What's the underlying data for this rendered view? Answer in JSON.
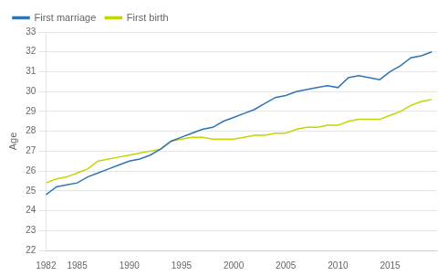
{
  "chart_data": {
    "type": "line",
    "ylabel": "Age",
    "x": [
      1982,
      1983,
      1984,
      1985,
      1986,
      1987,
      1988,
      1989,
      1990,
      1991,
      1992,
      1993,
      1994,
      1995,
      1996,
      1997,
      1998,
      1999,
      2000,
      2001,
      2002,
      2003,
      2004,
      2005,
      2006,
      2007,
      2008,
      2009,
      2010,
      2011,
      2012,
      2013,
      2014,
      2015,
      2016,
      2017,
      2018,
      2019
    ],
    "series": [
      {
        "name": "First marriage",
        "color": "#2E75B6",
        "values": [
          24.8,
          25.2,
          25.3,
          25.4,
          25.7,
          25.9,
          26.1,
          26.3,
          26.5,
          26.6,
          26.8,
          27.1,
          27.5,
          27.7,
          27.9,
          28.1,
          28.2,
          28.5,
          28.7,
          28.9,
          29.1,
          29.4,
          29.7,
          29.8,
          30.0,
          30.1,
          30.2,
          30.3,
          30.2,
          30.7,
          30.8,
          30.7,
          30.6,
          31.0,
          31.3,
          31.7,
          31.8,
          32.0
        ]
      },
      {
        "name": "First birth",
        "color": "#C4D600",
        "values": [
          25.4,
          25.6,
          25.7,
          25.9,
          26.1,
          26.5,
          26.6,
          26.7,
          26.8,
          26.9,
          27.0,
          27.1,
          27.5,
          27.6,
          27.7,
          27.7,
          27.6,
          27.6,
          27.6,
          27.7,
          27.8,
          27.8,
          27.9,
          27.9,
          28.1,
          28.2,
          28.2,
          28.3,
          28.3,
          28.5,
          28.6,
          28.6,
          28.6,
          28.8,
          29.0,
          29.3,
          29.5,
          29.6
        ]
      }
    ],
    "xlim": [
      1982,
      2019.5
    ],
    "xticks": [
      1982,
      1985,
      1990,
      1995,
      2000,
      2005,
      2010,
      2015
    ],
    "ylim": [
      22,
      33
    ],
    "yticks": [
      22,
      23,
      24,
      25,
      26,
      27,
      28,
      29,
      30,
      31,
      32,
      33
    ],
    "grid": "y",
    "legend": "upper left"
  }
}
